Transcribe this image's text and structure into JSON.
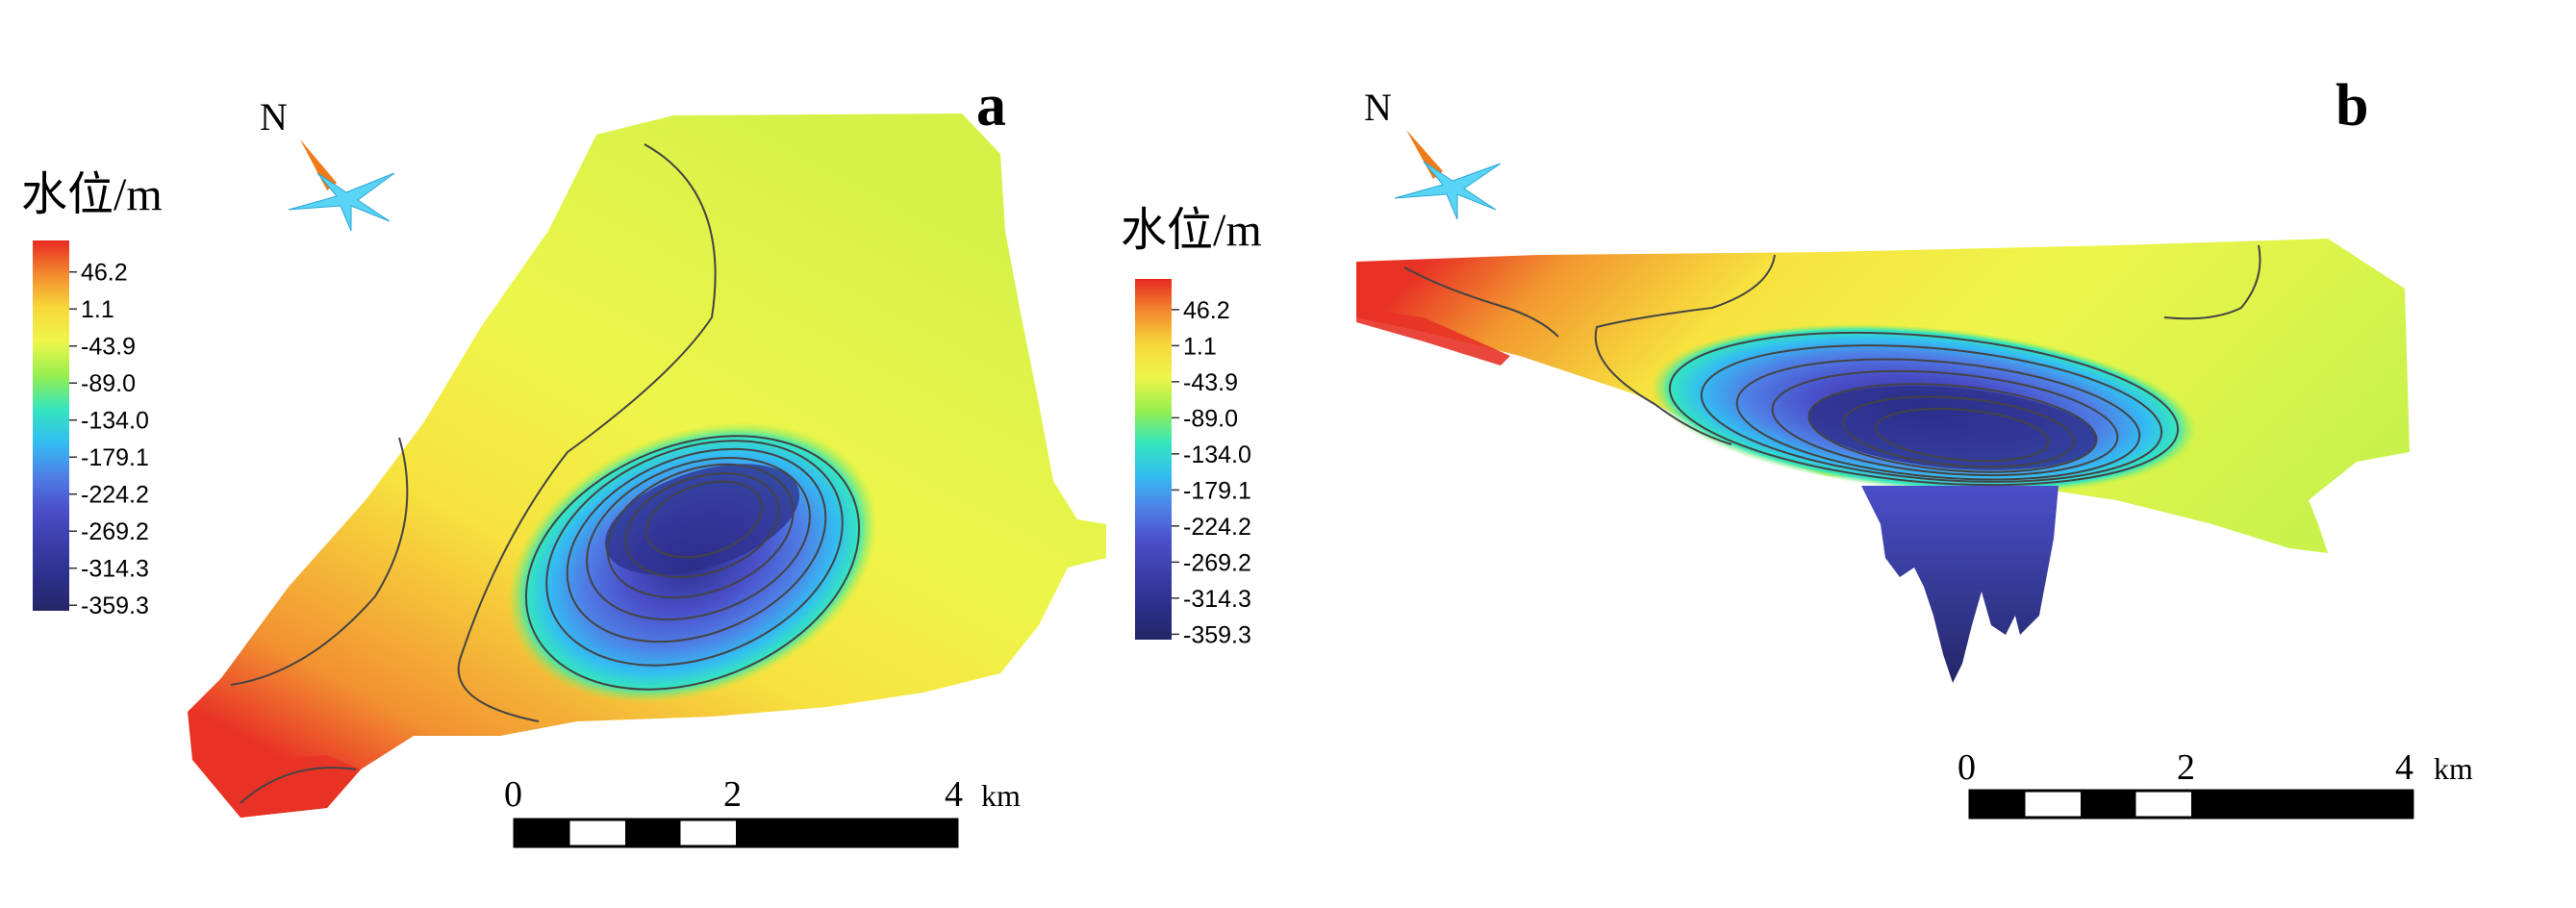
{
  "panels": [
    {
      "id": "a",
      "letter": "a",
      "north_label": "N",
      "legend_title": "水位/m"
    },
    {
      "id": "b",
      "letter": "b",
      "north_label": "N",
      "legend_title": "水位/m"
    }
  ],
  "legend": {
    "ticks": [
      "46.2",
      "1.1",
      "-43.9",
      "-89.0",
      "-134.0",
      "-179.1",
      "-224.2",
      "-269.2",
      "-314.3",
      "-359.3"
    ],
    "colors": [
      "#e82a22",
      "#f38a2e",
      "#f7d83a",
      "#eef54a",
      "#97ef4f",
      "#35e6bd",
      "#33bdf2",
      "#4f7fe6",
      "#4a4fc9",
      "#3b3ea8",
      "#2c2f8a",
      "#232767"
    ]
  },
  "scale_bar": {
    "ticks": [
      "0",
      "2",
      "4"
    ],
    "unit": "km"
  },
  "colors": {
    "high": "#e82a22",
    "mid": "#eef54a",
    "low": "#232767",
    "contour": "#444444"
  }
}
